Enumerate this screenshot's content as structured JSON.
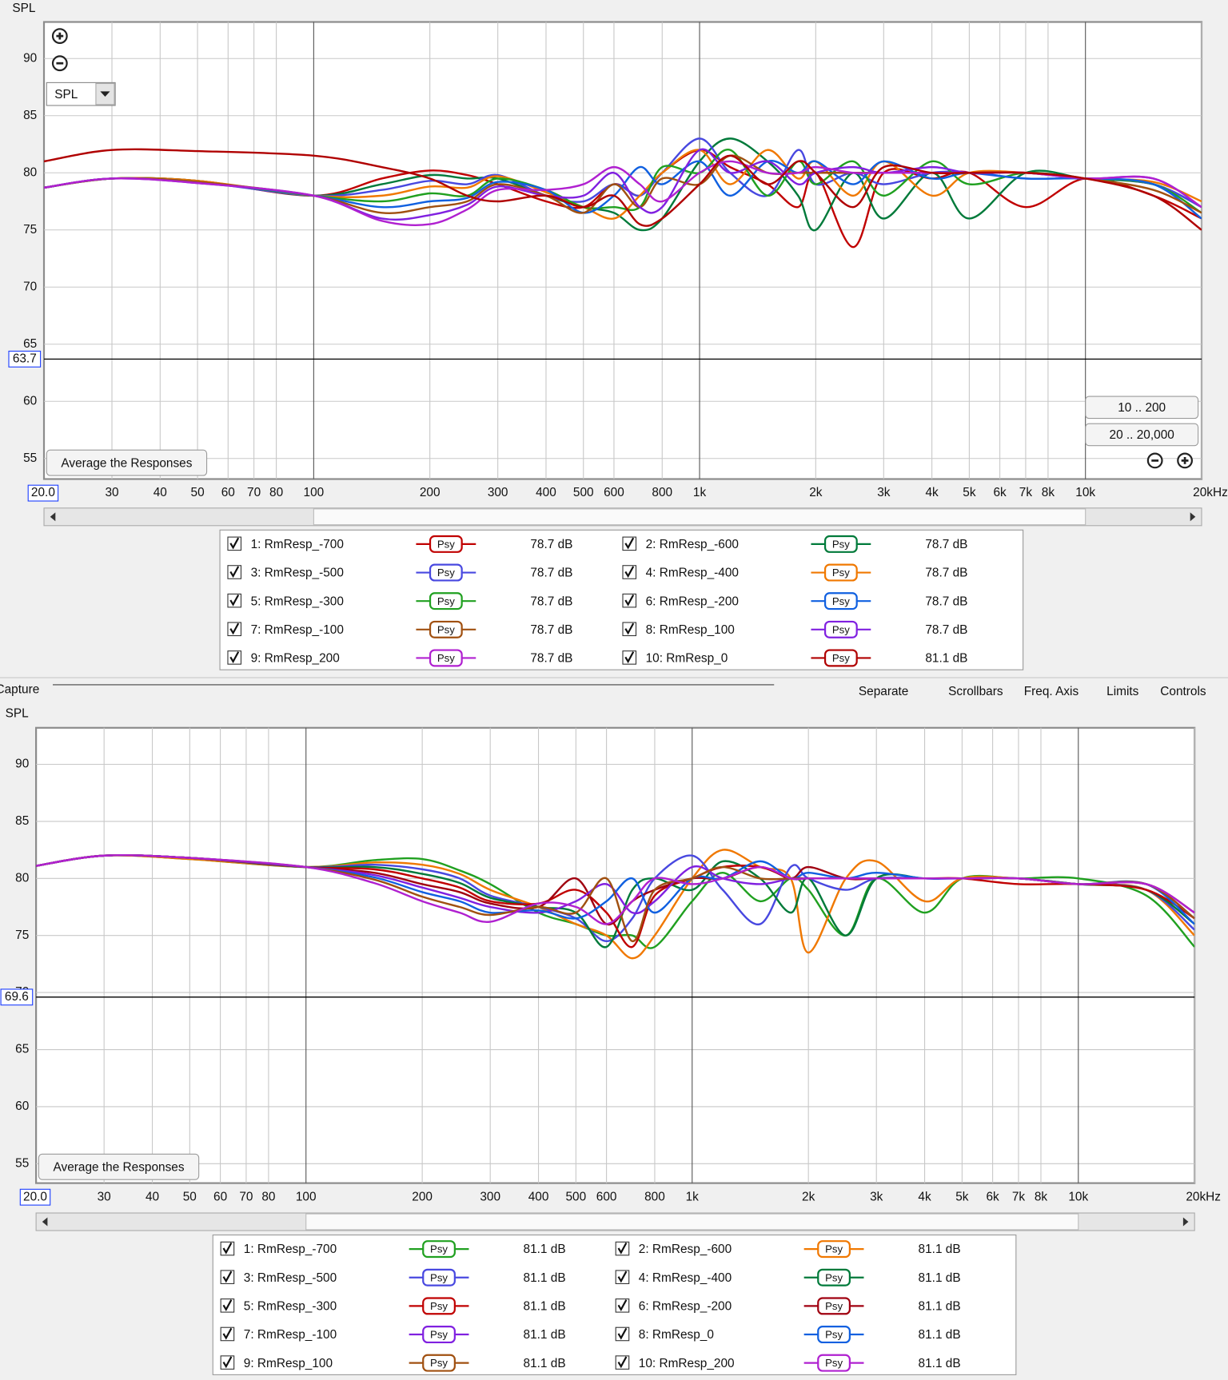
{
  "toolbar": {
    "capture": "Capture",
    "items": [
      "Separate",
      "Scrollbars",
      "Freq. Axis",
      "Limits",
      "Controls"
    ]
  },
  "chart_data": [
    {
      "type": "line",
      "y_label": "SPL",
      "log_x": true,
      "grid": true,
      "xlim": [
        20,
        20000
      ],
      "ylim": [
        53.2,
        93.2
      ],
      "xticks": [
        30,
        40,
        50,
        60,
        70,
        80,
        100,
        200,
        300,
        400,
        500,
        600,
        800,
        {
          "value": 1000,
          "label": "1k"
        },
        {
          "value": 2000,
          "label": "2k"
        },
        {
          "value": 3000,
          "label": "3k"
        },
        {
          "value": 4000,
          "label": "4k"
        },
        {
          "value": 5000,
          "label": "5k"
        },
        {
          "value": 6000,
          "label": "6k"
        },
        {
          "value": 7000,
          "label": "7k"
        },
        {
          "value": 8000,
          "label": "8k"
        },
        {
          "value": 10000,
          "label": "10k"
        },
        {
          "value": 20000,
          "label": "20kHz"
        }
      ],
      "yticks": [
        55,
        60,
        65,
        70,
        75,
        80,
        85,
        90
      ],
      "x_start": {
        "value": 20,
        "label": "20.0"
      },
      "marker": 63.7,
      "dropdown": "SPL",
      "buttons": [
        "10 .. 200",
        "20 .. 20,000"
      ],
      "average_button": "Average the Responses",
      "smoothing": "Psy",
      "x": [
        20,
        30,
        50,
        100,
        150,
        200,
        250,
        300,
        400,
        500,
        600,
        700,
        800,
        1000,
        1200,
        1500,
        1800,
        2000,
        2500,
        3000,
        4000,
        5000,
        7000,
        10000,
        15000,
        20000
      ],
      "series": [
        {
          "name": "1: RmResp_-700",
          "color": "#c00000",
          "level_label": "78.7 dB",
          "values": [
            78.7,
            79.5,
            79.3,
            78,
            79.5,
            80.2,
            79.8,
            79,
            77.5,
            77,
            79,
            78,
            80,
            82,
            80.5,
            79,
            77,
            80,
            73.5,
            80,
            79.5,
            80,
            77,
            79.5,
            78,
            76
          ]
        },
        {
          "name": "2: RmResp_-600",
          "color": "#007a3a",
          "level_label": "78.7 dB",
          "values": [
            78.7,
            79.5,
            79.3,
            78,
            79,
            79.8,
            79.5,
            79.5,
            78,
            77,
            76.5,
            75,
            76,
            81,
            83,
            81,
            78,
            75,
            80,
            76,
            80,
            76,
            80,
            79.5,
            79,
            77
          ]
        },
        {
          "name": "3: RmResp_-500",
          "color": "#4848e0",
          "level_label": "78.7 dB",
          "values": [
            78.7,
            79.5,
            79.2,
            78,
            78.5,
            79.3,
            79,
            79.8,
            78,
            77.5,
            79,
            78,
            80,
            83,
            80,
            78,
            82,
            79,
            80,
            79,
            80,
            80,
            79.5,
            79.5,
            79,
            77
          ]
        },
        {
          "name": "4: RmResp_-400",
          "color": "#f07800",
          "level_label": "78.7 dB",
          "values": [
            78.7,
            79.5,
            79.3,
            78,
            78,
            78.8,
            78.7,
            79.7,
            78.3,
            77,
            76,
            78,
            80,
            82,
            79,
            82,
            79.5,
            81,
            78,
            81,
            78,
            80,
            80,
            79.5,
            79.2,
            77.5
          ]
        },
        {
          "name": "5: RmResp_-300",
          "color": "#20a020",
          "level_label": "78.7 dB",
          "values": [
            78.7,
            79.5,
            79.2,
            78,
            77.5,
            78.2,
            78,
            79.5,
            78.5,
            77,
            77,
            77,
            80.5,
            80,
            82,
            78,
            81,
            79,
            81,
            78,
            81,
            79,
            80,
            79.5,
            79,
            76.5
          ]
        },
        {
          "name": "6: RmResp_-200",
          "color": "#1060e0",
          "level_label": "78.7 dB",
          "values": [
            78.7,
            79.5,
            79.2,
            78,
            77,
            77.5,
            77.8,
            79.2,
            78.5,
            76.5,
            78,
            80.5,
            79,
            81,
            78,
            81,
            80,
            81,
            79,
            81,
            79.5,
            80,
            79.5,
            79.5,
            79,
            76
          ]
        },
        {
          "name": "7: RmResp_-100",
          "color": "#a05010",
          "level_label": "78.7 dB",
          "values": [
            78.7,
            79.5,
            79.2,
            78,
            76.5,
            77,
            77.5,
            79,
            78,
            76.5,
            79,
            77,
            79.5,
            79,
            81.5,
            80,
            80,
            80,
            80,
            80,
            80,
            80,
            80,
            79.5,
            78.5,
            76.5
          ]
        },
        {
          "name": "8: RmResp_100",
          "color": "#8020e0",
          "level_label": "78.7 dB",
          "values": [
            78.7,
            79.5,
            79.1,
            78,
            76,
            76.3,
            77.2,
            78.8,
            78,
            78,
            80,
            77,
            77,
            82,
            80,
            81,
            79,
            80,
            80.5,
            80,
            80.5,
            80,
            80,
            79.5,
            79.5,
            77
          ]
        },
        {
          "name": "9: RmResp_200",
          "color": "#b020d0",
          "level_label": "78.7 dB",
          "values": [
            78.7,
            79.5,
            79.1,
            78,
            75.8,
            75.5,
            76.8,
            78.5,
            78.5,
            79,
            80.5,
            79,
            77.5,
            80,
            81,
            80,
            80,
            80.5,
            80,
            80,
            80,
            80,
            80,
            79.5,
            79.5,
            77
          ]
        },
        {
          "name": "10: RmResp_0",
          "color": "#b00000",
          "level_label": "81.1 dB",
          "values": [
            81,
            82,
            81.9,
            81.5,
            80.5,
            79.5,
            78,
            77.5,
            78,
            77,
            78,
            75.5,
            76,
            79,
            81.5,
            79,
            81,
            80,
            77,
            80.5,
            80,
            80,
            80,
            79.5,
            78,
            75
          ]
        }
      ]
    },
    {
      "type": "line",
      "y_label": "SPL",
      "log_x": true,
      "grid": true,
      "xlim": [
        20,
        20000
      ],
      "ylim": [
        53.3,
        93.2
      ],
      "xticks": [
        30,
        40,
        50,
        60,
        70,
        80,
        100,
        200,
        300,
        400,
        500,
        600,
        800,
        {
          "value": 1000,
          "label": "1k"
        },
        {
          "value": 2000,
          "label": "2k"
        },
        {
          "value": 3000,
          "label": "3k"
        },
        {
          "value": 4000,
          "label": "4k"
        },
        {
          "value": 5000,
          "label": "5k"
        },
        {
          "value": 6000,
          "label": "6k"
        },
        {
          "value": 7000,
          "label": "7k"
        },
        {
          "value": 8000,
          "label": "8k"
        },
        {
          "value": 10000,
          "label": "10k"
        },
        {
          "value": 20000,
          "label": "20kHz"
        }
      ],
      "yticks": [
        55,
        60,
        65,
        70,
        75,
        80,
        85,
        90
      ],
      "x_start": {
        "value": 20,
        "label": "20.0"
      },
      "marker": 69.6,
      "average_button": "Average the Responses",
      "smoothing": "Psy",
      "x": [
        20,
        30,
        50,
        100,
        150,
        200,
        250,
        300,
        400,
        500,
        600,
        700,
        800,
        1000,
        1200,
        1500,
        1800,
        2000,
        2500,
        3000,
        4000,
        5000,
        7000,
        10000,
        15000,
        20000
      ],
      "series": [
        {
          "name": "1: RmResp_-700",
          "color": "#20a020",
          "level_label": "81.1 dB",
          "values": [
            81.1,
            82,
            81.7,
            81,
            81.6,
            81.7,
            80.7,
            79.5,
            77,
            76,
            75,
            75,
            74,
            78,
            80.5,
            78,
            80,
            79,
            75,
            80,
            77,
            80,
            80,
            80,
            78.5,
            74
          ]
        },
        {
          "name": "2: RmResp_-600",
          "color": "#f07800",
          "level_label": "81.1 dB",
          "values": [
            81.1,
            82,
            81.7,
            81,
            81.4,
            81.2,
            80.4,
            79,
            77.5,
            76,
            75,
            73,
            75,
            80,
            82.5,
            81,
            80,
            73.5,
            80,
            81.5,
            78,
            80,
            80,
            79.5,
            79,
            75
          ]
        },
        {
          "name": "3: RmResp_-500",
          "color": "#4848e0",
          "level_label": "81.1 dB",
          "values": [
            81.1,
            82,
            81.8,
            81,
            81.2,
            80.8,
            80,
            78.5,
            77.5,
            76.5,
            74.5,
            76.5,
            80,
            82,
            79,
            76,
            81,
            80,
            79,
            80,
            80,
            80,
            80,
            79.5,
            79,
            75.5
          ]
        },
        {
          "name": "4: RmResp_-400",
          "color": "#007a3a",
          "level_label": "81.1 dB",
          "values": [
            81.1,
            82,
            81.8,
            81,
            81,
            80.4,
            79.6,
            78.3,
            77.5,
            77,
            74,
            79,
            80,
            79,
            81.5,
            80,
            77,
            80,
            75,
            80,
            80,
            80,
            80,
            79.5,
            79,
            76
          ]
        },
        {
          "name": "5: RmResp_-300",
          "color": "#c00000",
          "level_label": "81.1 dB",
          "values": [
            81.1,
            82,
            81.8,
            81,
            80.8,
            80,
            79.2,
            78,
            77.8,
            79,
            77,
            74,
            78.5,
            80,
            81,
            81,
            80,
            80,
            80,
            80,
            80,
            80,
            79.5,
            79.5,
            79,
            76.5
          ]
        },
        {
          "name": "6: RmResp_-200",
          "color": "#a00010",
          "level_label": "81.1 dB",
          "values": [
            81.1,
            82,
            81.8,
            81,
            80.5,
            79.5,
            78.8,
            77.8,
            77.5,
            80,
            76,
            78,
            79,
            80,
            80,
            81,
            80,
            81,
            80,
            80,
            80,
            80,
            80,
            79.5,
            79.5,
            77
          ]
        },
        {
          "name": "7: RmResp_-100",
          "color": "#8020e0",
          "level_label": "81.1 dB",
          "values": [
            81.1,
            82,
            81.8,
            81,
            80.3,
            79.2,
            78.3,
            77.5,
            77,
            78,
            79.5,
            77,
            78,
            81,
            80,
            79.5,
            80,
            80,
            80,
            80,
            80,
            80,
            80,
            79.5,
            79.5,
            76.5
          ]
        },
        {
          "name": "8: RmResp_0",
          "color": "#1060e0",
          "level_label": "81.1 dB",
          "values": [
            81.1,
            82,
            81.8,
            81,
            80.1,
            78.8,
            78,
            77,
            77.2,
            76.5,
            78,
            80,
            77,
            80,
            80,
            81.5,
            80,
            80.5,
            80,
            80.5,
            80,
            80,
            80,
            79.5,
            79.5,
            76
          ]
        },
        {
          "name": "9: RmResp_100",
          "color": "#a05010",
          "level_label": "81.1 dB",
          "values": [
            81.1,
            82,
            81.8,
            81,
            79.9,
            78.4,
            77.5,
            76.8,
            77.5,
            77,
            80,
            74.5,
            79,
            80,
            81,
            80,
            80,
            80,
            80,
            80,
            80,
            80,
            80,
            79.5,
            79.5,
            76.5
          ]
        },
        {
          "name": "10: RmResp_200",
          "color": "#b020d0",
          "level_label": "81.1 dB",
          "values": [
            81.1,
            82,
            81.8,
            81,
            79.6,
            78,
            77,
            76.2,
            77.8,
            77.5,
            76,
            78,
            80,
            79.5,
            80,
            81,
            80,
            80,
            80,
            80,
            80,
            80,
            80,
            79.5,
            79.5,
            77
          ]
        }
      ]
    }
  ]
}
